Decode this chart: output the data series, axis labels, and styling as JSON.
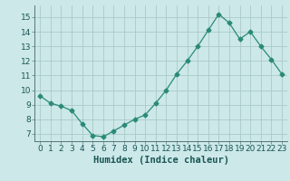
{
  "x": [
    0,
    1,
    2,
    3,
    4,
    5,
    6,
    7,
    8,
    9,
    10,
    11,
    12,
    13,
    14,
    15,
    16,
    17,
    18,
    19,
    20,
    21,
    22,
    23
  ],
  "y": [
    9.6,
    9.1,
    8.9,
    8.6,
    7.7,
    6.9,
    6.8,
    7.2,
    7.6,
    8.0,
    8.3,
    9.1,
    10.0,
    11.1,
    12.0,
    13.0,
    14.1,
    15.2,
    14.6,
    13.5,
    14.0,
    13.0,
    12.1,
    11.1
  ],
  "line_color": "#2a8a78",
  "marker": "D",
  "marker_size": 2.5,
  "bg_color": "#cce8e8",
  "grid_color": "#aacaca",
  "xlabel": "Humidex (Indice chaleur)",
  "ylim": [
    6.5,
    15.8
  ],
  "xlim": [
    -0.5,
    23.5
  ],
  "yticks": [
    7,
    8,
    9,
    10,
    11,
    12,
    13,
    14,
    15
  ],
  "xticks": [
    0,
    1,
    2,
    3,
    4,
    5,
    6,
    7,
    8,
    9,
    10,
    11,
    12,
    13,
    14,
    15,
    16,
    17,
    18,
    19,
    20,
    21,
    22,
    23
  ],
  "tick_fontsize": 6.5,
  "xlabel_fontsize": 7.5,
  "xlabel_color": "#1a5555",
  "tick_color": "#1a5555"
}
